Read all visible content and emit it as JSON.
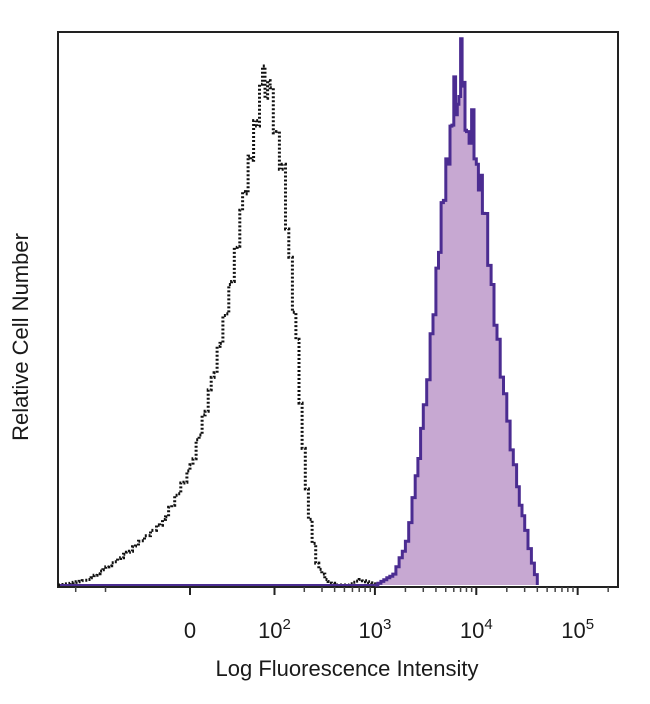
{
  "chart_data": {
    "type": "area",
    "title": "",
    "xlabel": "Log Fluorescence Intensity",
    "ylabel": "Relative Cell Number",
    "x_scale": "biexponential",
    "xlim": [
      -300,
      250000
    ],
    "ylim": [
      0,
      1
    ],
    "x_ticks": [
      {
        "value": 0,
        "base": "0",
        "exp": ""
      },
      {
        "value": 100,
        "base": "10",
        "exp": "2"
      },
      {
        "value": 1000,
        "base": "10",
        "exp": "3"
      },
      {
        "value": 10000,
        "base": "10",
        "exp": "4"
      },
      {
        "value": 100000,
        "base": "10",
        "exp": "5"
      }
    ],
    "grid": false,
    "legend": "none",
    "series": [
      {
        "style": "dotted-outline",
        "color": "#111111",
        "x": [
          -300,
          -150,
          -60,
          -20,
          0,
          15,
          30,
          45,
          60,
          75,
          90,
          105,
          120,
          140,
          165,
          190,
          220,
          260,
          320,
          400,
          520,
          700,
          1000
        ],
        "values": [
          0.0,
          0.01,
          0.06,
          0.12,
          0.22,
          0.38,
          0.55,
          0.72,
          0.85,
          0.95,
          0.91,
          0.83,
          0.77,
          0.6,
          0.45,
          0.25,
          0.12,
          0.04,
          0.01,
          0.0,
          0.0,
          0.01,
          0.0
        ]
      },
      {
        "style": "filled",
        "color": "#4b2c91",
        "fill": "#c7a8d2",
        "x": [
          1000,
          1500,
          2000,
          2500,
          3000,
          3500,
          4000,
          4500,
          5000,
          5500,
          6000,
          6500,
          7000,
          7500,
          8000,
          9000,
          10000,
          11000,
          12000,
          14000,
          16000,
          20000,
          25000,
          30000,
          35000,
          40000
        ],
        "values": [
          0.0,
          0.02,
          0.08,
          0.2,
          0.33,
          0.46,
          0.58,
          0.7,
          0.78,
          0.84,
          0.93,
          0.88,
          1.0,
          0.92,
          0.83,
          0.87,
          0.77,
          0.75,
          0.68,
          0.55,
          0.45,
          0.3,
          0.18,
          0.1,
          0.04,
          0.0
        ]
      }
    ]
  }
}
